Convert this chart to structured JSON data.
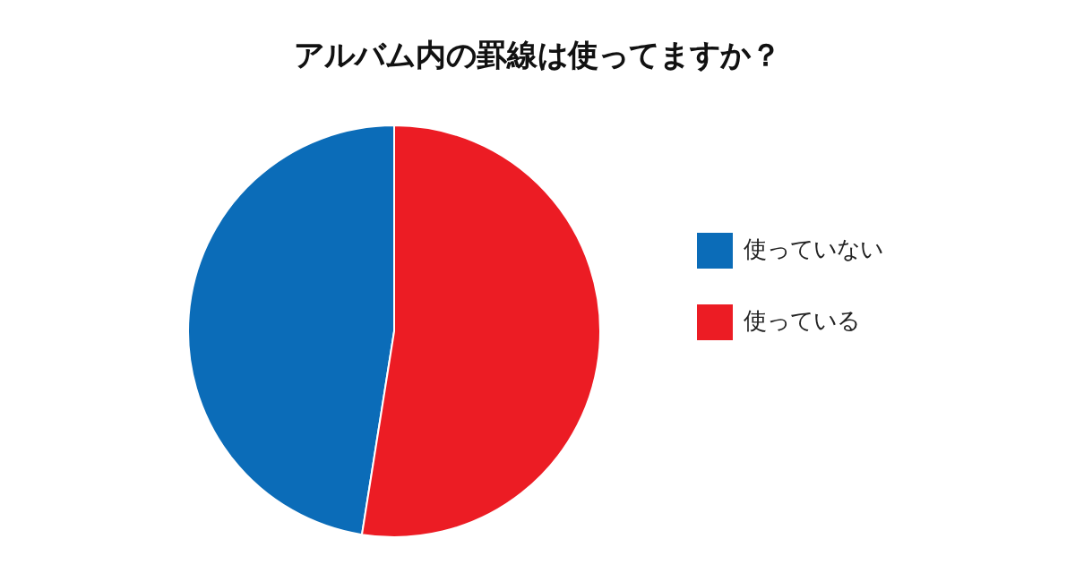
{
  "chart_data": {
    "type": "pie",
    "title": "アルバム内の罫線は使ってますか？",
    "categories": [
      "使っていない",
      "使っている"
    ],
    "values": [
      47.5,
      52.5
    ],
    "colors": [
      "#0b6cb8",
      "#ec1c24"
    ],
    "legend": "right"
  }
}
